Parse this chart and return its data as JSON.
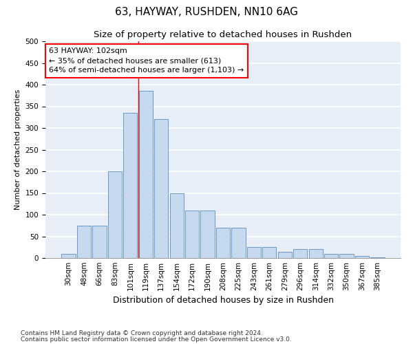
{
  "title1": "63, HAYWAY, RUSHDEN, NN10 6AG",
  "title2": "Size of property relative to detached houses in Rushden",
  "xlabel": "Distribution of detached houses by size in Rushden",
  "ylabel": "Number of detached properties",
  "categories": [
    "30sqm",
    "48sqm",
    "66sqm",
    "83sqm",
    "101sqm",
    "119sqm",
    "137sqm",
    "154sqm",
    "172sqm",
    "190sqm",
    "208sqm",
    "225sqm",
    "243sqm",
    "261sqm",
    "279sqm",
    "296sqm",
    "314sqm",
    "332sqm",
    "350sqm",
    "367sqm",
    "385sqm"
  ],
  "values": [
    10,
    75,
    75,
    200,
    335,
    385,
    320,
    150,
    110,
    110,
    70,
    70,
    25,
    25,
    15,
    20,
    20,
    10,
    10,
    5,
    2
  ],
  "bar_color": "#c6d9ee",
  "bar_edge_color": "#5b8cbf",
  "red_line_x": 4.5,
  "annotation_text": "63 HAYWAY: 102sqm\n← 35% of detached houses are smaller (613)\n64% of semi-detached houses are larger (1,103) →",
  "annotation_box_color": "white",
  "annotation_box_edge_color": "red",
  "ylim": [
    0,
    500
  ],
  "yticks": [
    0,
    50,
    100,
    150,
    200,
    250,
    300,
    350,
    400,
    450,
    500
  ],
  "footer1": "Contains HM Land Registry data © Crown copyright and database right 2024.",
  "footer2": "Contains public sector information licensed under the Open Government Licence v3.0.",
  "background_color": "#e8eef8",
  "grid_color": "white",
  "title1_fontsize": 11,
  "title2_fontsize": 9.5,
  "xlabel_fontsize": 9,
  "ylabel_fontsize": 8,
  "tick_fontsize": 7.5,
  "annotation_fontsize": 8,
  "footer_fontsize": 6.5
}
